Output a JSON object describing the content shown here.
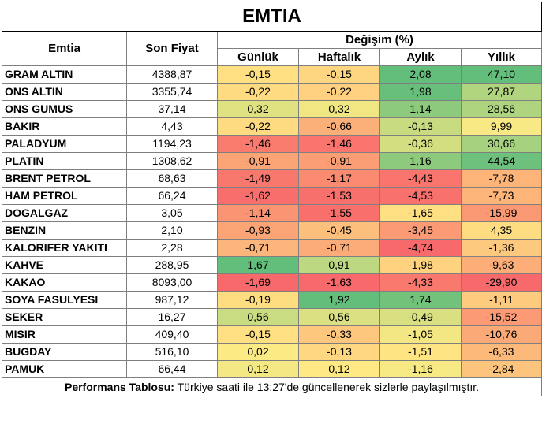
{
  "title": "EMTIA",
  "headers": {
    "commodity": "Emtia",
    "last_price": "Son Fiyat",
    "change_group": "Değişim (%)",
    "daily": "Günlük",
    "weekly": "Haftalık",
    "monthly": "Aylık",
    "yearly": "Yıllık"
  },
  "rows": [
    {
      "name": "GRAM ALTIN",
      "price": "4388,87",
      "d": "-0,15",
      "w": "-0,15",
      "m": "2,08",
      "y": "47,10"
    },
    {
      "name": "ONS ALTIN",
      "price": "3355,74",
      "d": "-0,22",
      "w": "-0,22",
      "m": "1,98",
      "y": "27,87"
    },
    {
      "name": "ONS GUMUS",
      "price": "37,14",
      "d": "0,32",
      "w": "0,32",
      "m": "1,14",
      "y": "28,56"
    },
    {
      "name": "BAKIR",
      "price": "4,43",
      "d": "-0,22",
      "w": "-0,66",
      "m": "-0,13",
      "y": "9,99"
    },
    {
      "name": "PALADYUM",
      "price": "1194,23",
      "d": "-1,46",
      "w": "-1,46",
      "m": "-0,36",
      "y": "30,66"
    },
    {
      "name": "PLATIN",
      "price": "1308,62",
      "d": "-0,91",
      "w": "-0,91",
      "m": "1,16",
      "y": "44,54"
    },
    {
      "name": "BRENT PETROL",
      "price": "68,63",
      "d": "-1,49",
      "w": "-1,17",
      "m": "-4,43",
      "y": "-7,78"
    },
    {
      "name": "HAM PETROL",
      "price": "66,24",
      "d": "-1,62",
      "w": "-1,53",
      "m": "-4,53",
      "y": "-7,73"
    },
    {
      "name": "DOGALGAZ",
      "price": "3,05",
      "d": "-1,14",
      "w": "-1,55",
      "m": "-1,65",
      "y": "-15,99"
    },
    {
      "name": "BENZIN",
      "price": "2,10",
      "d": "-0,93",
      "w": "-0,45",
      "m": "-3,45",
      "y": "4,35"
    },
    {
      "name": "KALORIFER YAKITI",
      "price": "2,28",
      "d": "-0,71",
      "w": "-0,71",
      "m": "-4,74",
      "y": "-1,36"
    },
    {
      "name": "KAHVE",
      "price": "288,95",
      "d": "1,67",
      "w": "0,91",
      "m": "-1,98",
      "y": "-9,63"
    },
    {
      "name": "KAKAO",
      "price": "8093,00",
      "d": "-1,69",
      "w": "-1,63",
      "m": "-4,33",
      "y": "-29,90"
    },
    {
      "name": "SOYA FASULYESI",
      "price": "987,12",
      "d": "-0,19",
      "w": "1,92",
      "m": "1,74",
      "y": "-1,11"
    },
    {
      "name": "SEKER",
      "price": "16,27",
      "d": "0,56",
      "w": "0,56",
      "m": "-0,49",
      "y": "-15,52"
    },
    {
      "name": "MISIR",
      "price": "409,40",
      "d": "-0,15",
      "w": "-0,33",
      "m": "-1,05",
      "y": "-10,76"
    },
    {
      "name": "BUGDAY",
      "price": "516,10",
      "d": "0,02",
      "w": "-0,13",
      "m": "-1,51",
      "y": "-6,33"
    },
    {
      "name": "PAMUK",
      "price": "66,44",
      "d": "0,12",
      "w": "0,12",
      "m": "-1,16",
      "y": "-2,84"
    }
  ],
  "footer": {
    "label": "Performans Tablosu:",
    "text": " Türkiye saati ile 13:27'de güncellenerek sizlerle paylaşılmıştır."
  }
}
